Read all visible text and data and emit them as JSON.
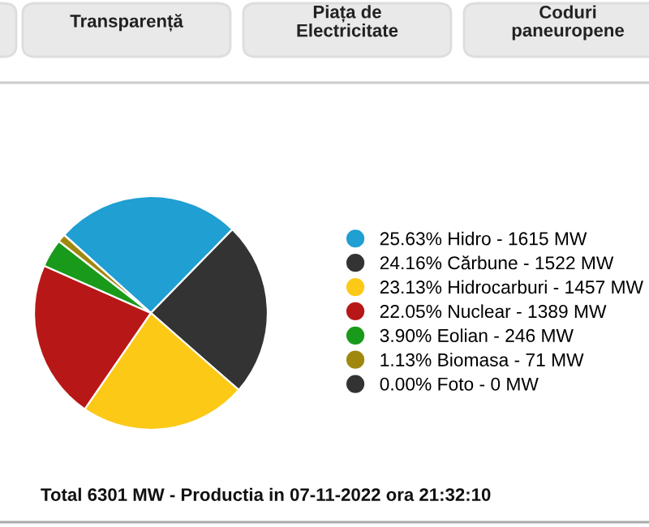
{
  "chart_data": {
    "type": "pie",
    "categories": [
      "25.63% Hidro - 1615 MW",
      "24.16% Cărbune - 1522 MW",
      "23.13% Hidrocarburi - 1457 MW",
      "22.05% Nuclear - 1389 MW",
      "3.90% Eolian - 246 MW",
      "1.13% Biomasa - 71 MW",
      "0.00% Foto - 0 MW"
    ],
    "values": [
      25.63,
      24.16,
      23.13,
      22.05,
      3.9,
      1.13,
      0.0
    ],
    "colors": [
      "#1f9fd2",
      "#333333",
      "#fcc917",
      "#b81717",
      "#1a9a1a",
      "#a0880e",
      "#333333"
    ],
    "legend": "right",
    "annotations": [
      "Transparență",
      "Piața de\nElectricitate",
      "Coduri\npaneuropene",
      "Total 6301 MW - Productia in 07-11-2022 ora 21:32:10"
    ]
  }
}
